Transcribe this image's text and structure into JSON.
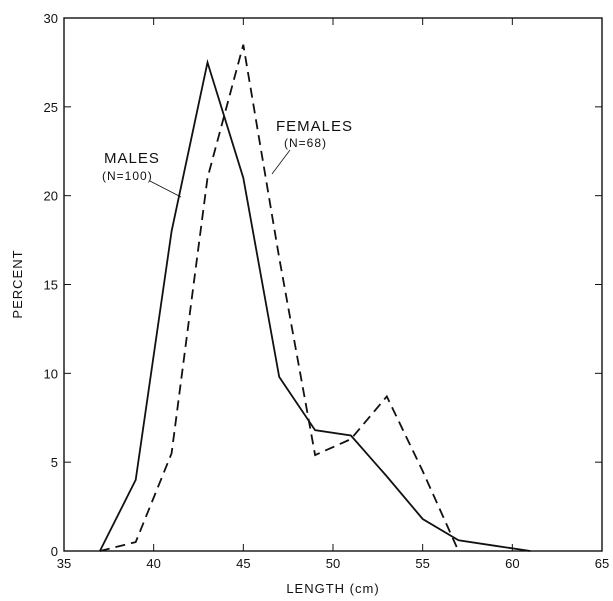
{
  "chart_data": {
    "type": "line",
    "title": "",
    "xlabel": "LENGTH (cm)",
    "ylabel": "PERCENT",
    "xlim": [
      35,
      65
    ],
    "ylim": [
      0,
      30
    ],
    "x_ticks": [
      35,
      40,
      45,
      50,
      55,
      60,
      65
    ],
    "y_ticks": [
      0,
      5,
      10,
      15,
      20,
      25,
      30
    ],
    "grid": false,
    "series": [
      {
        "name": "MALES",
        "style": "solid",
        "x": [
          37,
          39,
          41,
          43,
          45,
          47,
          49,
          51,
          53,
          55,
          57,
          59,
          61
        ],
        "y": [
          0,
          4,
          18,
          27.5,
          21,
          9.8,
          6.8,
          6.5,
          4.2,
          1.8,
          0.6,
          0.3,
          0
        ]
      },
      {
        "name": "FEMALES",
        "style": "dashed",
        "x": [
          37,
          39,
          41,
          43,
          45,
          47,
          49,
          51,
          53,
          55,
          57
        ],
        "y": [
          0,
          0.5,
          5.5,
          21,
          28.5,
          16.5,
          5.4,
          6.3,
          8.7,
          4.5,
          0
        ]
      }
    ],
    "annotations": [
      {
        "text": "MALES",
        "sub": "(N=100)"
      },
      {
        "text": "FEMALES",
        "sub": "(N=68)"
      }
    ]
  }
}
